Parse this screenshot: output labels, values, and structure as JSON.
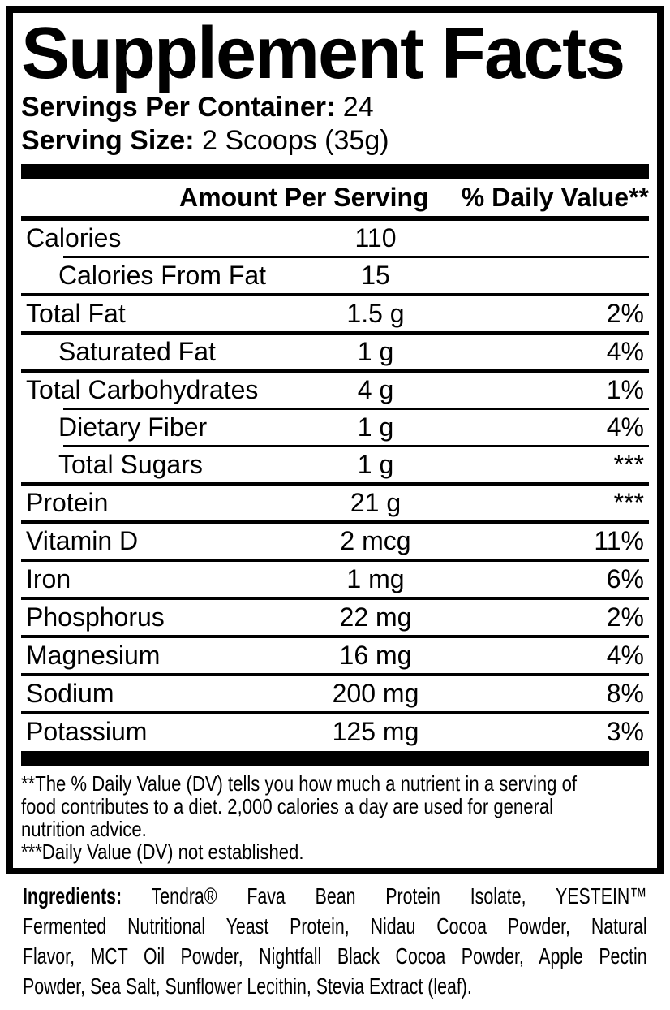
{
  "colors": {
    "text": "#000000",
    "background": "#ffffff",
    "rule": "#000000"
  },
  "title": "Supplement Facts",
  "serving_info": {
    "servings_per_container_label": "Servings Per Container:",
    "servings_per_container_value": "24",
    "serving_size_label": "Serving Size:",
    "serving_size_value": "2 Scoops (35g)"
  },
  "table": {
    "header": {
      "amount": "Amount Per Serving",
      "daily_value": "% Daily Value**"
    },
    "rows": [
      {
        "label": "Calories",
        "amount": "110",
        "daily_value": "",
        "indent": false
      },
      {
        "label": "Calories From Fat",
        "amount": "15",
        "daily_value": "",
        "indent": true
      },
      {
        "label": "Total Fat",
        "amount": "1.5 g",
        "daily_value": "2%",
        "indent": false
      },
      {
        "label": "Saturated Fat",
        "amount": "1 g",
        "daily_value": "4%",
        "indent": true
      },
      {
        "label": "Total Carbohydrates",
        "amount": "4 g",
        "daily_value": "1%",
        "indent": false
      },
      {
        "label": "Dietary Fiber",
        "amount": "1 g",
        "daily_value": "4%",
        "indent": true
      },
      {
        "label": "Total Sugars",
        "amount": "1 g",
        "daily_value": "***",
        "indent": true
      },
      {
        "label": "Protein",
        "amount": "21 g",
        "daily_value": "***",
        "indent": false
      },
      {
        "label": "Vitamin D",
        "amount": "2 mcg",
        "daily_value": "11%",
        "indent": false
      },
      {
        "label": "Iron",
        "amount": "1 mg",
        "daily_value": "6%",
        "indent": false
      },
      {
        "label": "Phosphorus",
        "amount": "22 mg",
        "daily_value": "2%",
        "indent": false
      },
      {
        "label": "Magnesium",
        "amount": "16 mg",
        "daily_value": "4%",
        "indent": false
      },
      {
        "label": "Sodium",
        "amount": "200 mg",
        "daily_value": "8%",
        "indent": false
      },
      {
        "label": "Potassium",
        "amount": "125 mg",
        "daily_value": "3%",
        "indent": false
      }
    ]
  },
  "footnotes": {
    "line1": "**The % Daily Value (DV) tells you how much a nutrient in a serving of",
    "line2": "food contributes to a diet. 2,000 calories a day are used for general",
    "line3": "nutrition advice.",
    "line4": "***Daily Value (DV) not established."
  },
  "ingredients": {
    "label": "Ingredients:",
    "line1": "Tendra® Fava Bean Protein Isolate, YESTEIN™",
    "line2": "Fermented Nutritional Yeast Protein, Nidau Cocoa Powder, Natural",
    "line3": "Flavor, MCT Oil Powder, Nightfall Black Cocoa Powder, Apple Pectin",
    "line4": "Powder, Sea Salt, Sunflower Lecithin, Stevia Extract (leaf)."
  }
}
